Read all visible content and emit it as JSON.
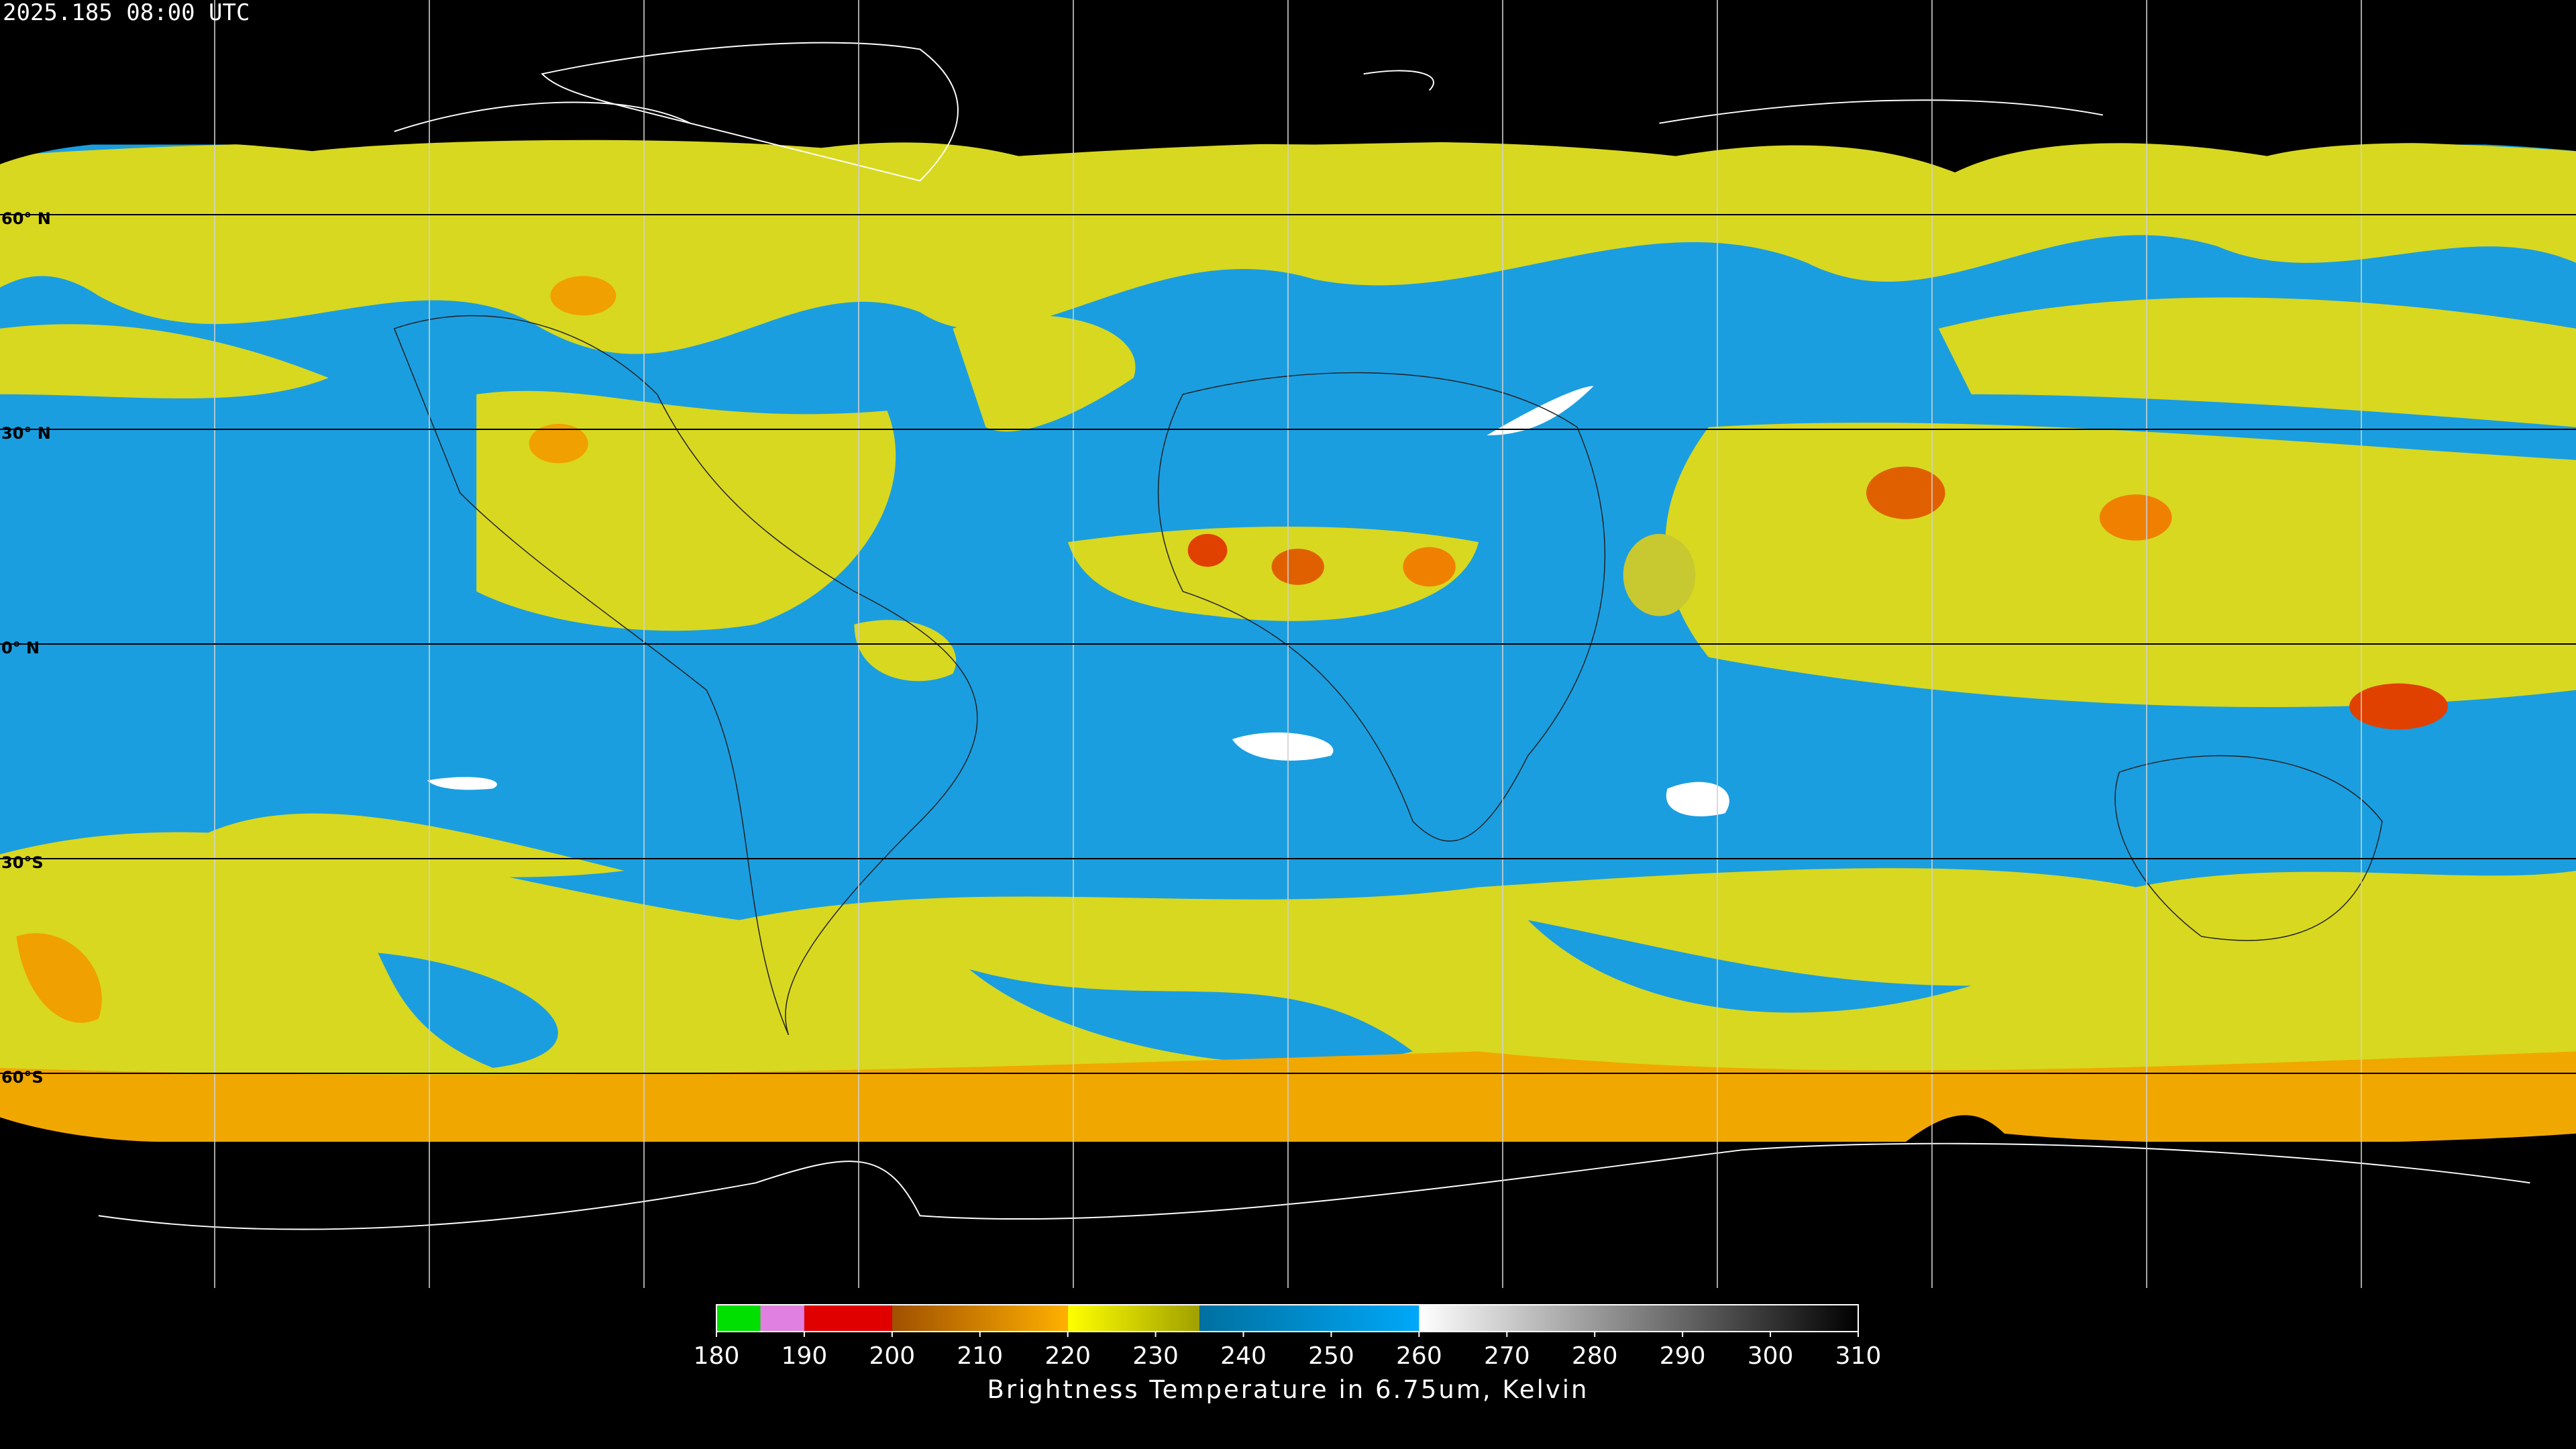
{
  "header": {
    "title": "2025.185 08:00 UTC"
  },
  "map": {
    "lat_lines": [
      {
        "value": 60,
        "label": "60° N"
      },
      {
        "value": 30,
        "label": "30° N"
      },
      {
        "value": 0,
        "label": "0° N"
      },
      {
        "value": -30,
        "label": "30°S"
      },
      {
        "value": -60,
        "label": "60°S"
      }
    ],
    "grid_color": "#d0d0d0"
  },
  "colorbar": {
    "range": [
      180,
      310
    ],
    "ticks": [
      180,
      190,
      200,
      210,
      220,
      230,
      240,
      250,
      260,
      270,
      280,
      290,
      300,
      310
    ],
    "segments": [
      {
        "from": 180,
        "to": 185,
        "colors": [
          "#00e000",
          "#00e000"
        ]
      },
      {
        "from": 185,
        "to": 190,
        "colors": [
          "#e080e0",
          "#e080e0"
        ]
      },
      {
        "from": 190,
        "to": 200,
        "colors": [
          "#e00000",
          "#e00000"
        ]
      },
      {
        "from": 200,
        "to": 220,
        "colors": [
          "#a05000",
          "#ffb000"
        ]
      },
      {
        "from": 220,
        "to": 235,
        "colors": [
          "#ffff00",
          "#a0a000"
        ]
      },
      {
        "from": 235,
        "to": 260,
        "colors": [
          "#0070a0",
          "#00a8f8"
        ]
      },
      {
        "from": 260,
        "to": 310,
        "colors": [
          "#ffffff",
          "#000000"
        ]
      }
    ],
    "label": "Brightness Temperature in 6.75um, Kelvin"
  }
}
